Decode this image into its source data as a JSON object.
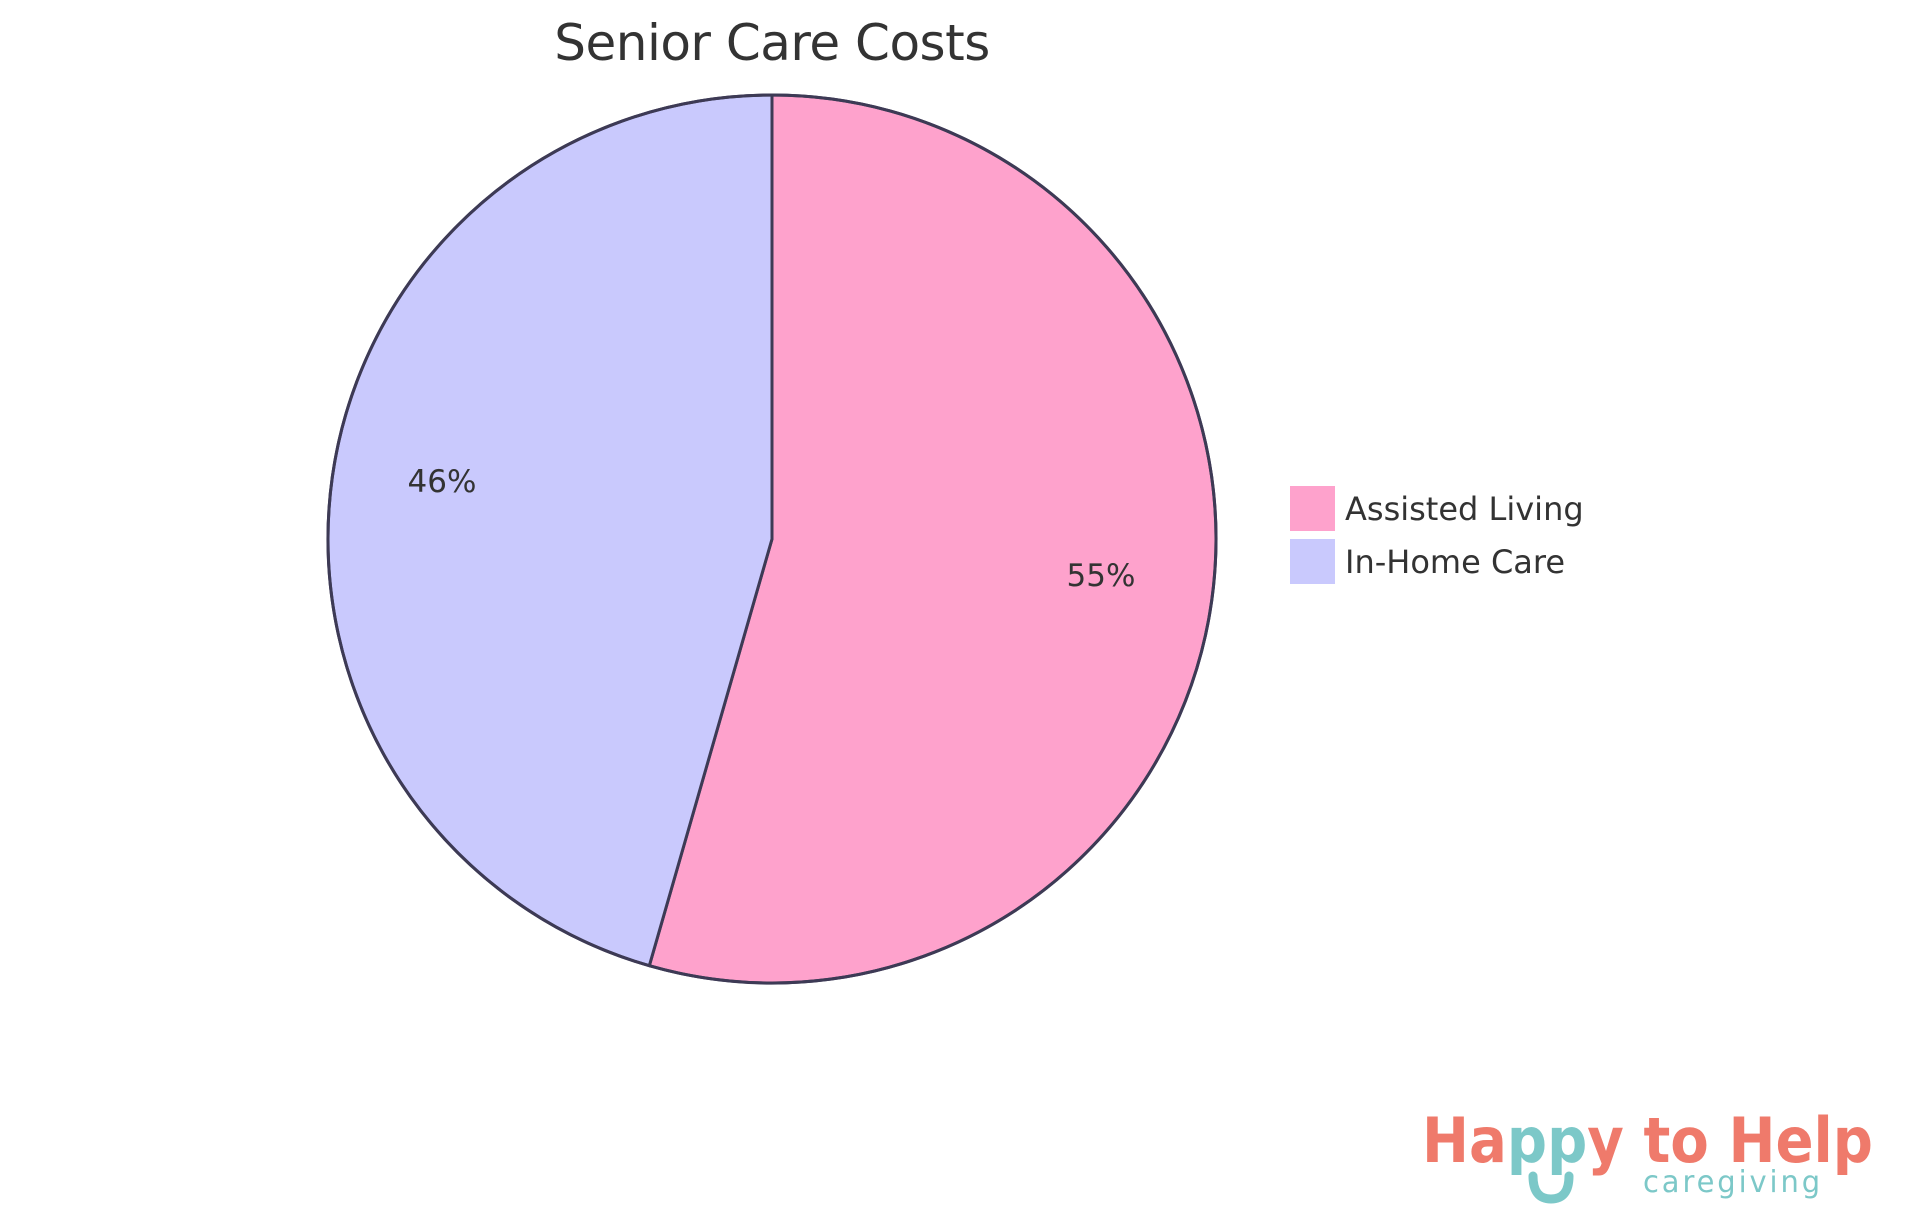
{
  "chart_data": {
    "type": "pie",
    "title": "Senior Care Costs",
    "categories": [
      "Assisted Living",
      "In-Home Care"
    ],
    "values": [
      55,
      46
    ],
    "labels": [
      "55%",
      "46%"
    ],
    "colors": [
      "#FEA2CC",
      "#C9C9FD"
    ],
    "legend_position": "right",
    "start_angle_deg": 0,
    "direction": "clockwise"
  },
  "title": "Senior Care Costs",
  "slices": [
    {
      "name": "Assisted Living",
      "label": "55%",
      "color": "#FEA2CC"
    },
    {
      "name": "In-Home Care",
      "label": "46%",
      "color": "#C9C9FD"
    }
  ],
  "legend": {
    "items": [
      {
        "label": "Assisted Living",
        "color": "#FEA2CC"
      },
      {
        "label": "In-Home Care",
        "color": "#C9C9FD"
      }
    ]
  },
  "logo": {
    "part1": "Ha",
    "part2": "pp",
    "part3": "y to Help",
    "subtitle": "caregiving",
    "coral": "#EF7A6B",
    "teal": "#7CC8C8"
  },
  "colors": {
    "stroke": "#3D3A55",
    "text": "#333333"
  }
}
